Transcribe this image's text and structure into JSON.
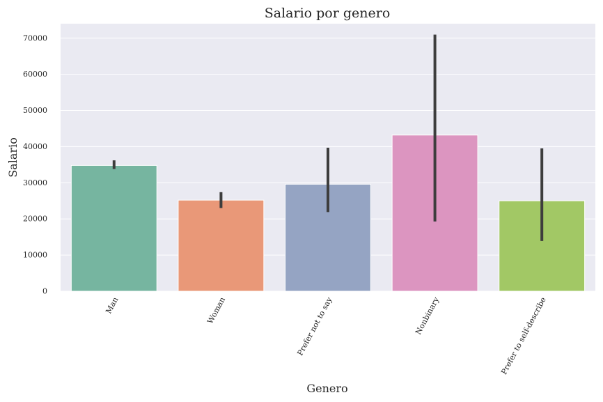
{
  "chart_data": {
    "type": "bar",
    "title": "Salario por genero",
    "xlabel": "Genero",
    "ylabel": "Salario",
    "ylim": [
      0,
      74000
    ],
    "yticks": [
      0,
      10000,
      20000,
      30000,
      40000,
      50000,
      60000,
      70000
    ],
    "grid": true,
    "categories": [
      "Man",
      "Woman",
      "Prefer not to say",
      "Nonbinary",
      "Prefer to self-describe"
    ],
    "values": [
      34800,
      25200,
      29600,
      43200,
      25000
    ],
    "error_low": [
      33800,
      23000,
      21900,
      19300,
      13900
    ],
    "error_high": [
      36200,
      27400,
      39700,
      71000,
      39500
    ],
    "colors": [
      "#76b5a0",
      "#e99878",
      "#95a4c3",
      "#dc95c0",
      "#a2c865"
    ],
    "background": "#eaeaf2",
    "error_color": "#3d3d3d"
  }
}
